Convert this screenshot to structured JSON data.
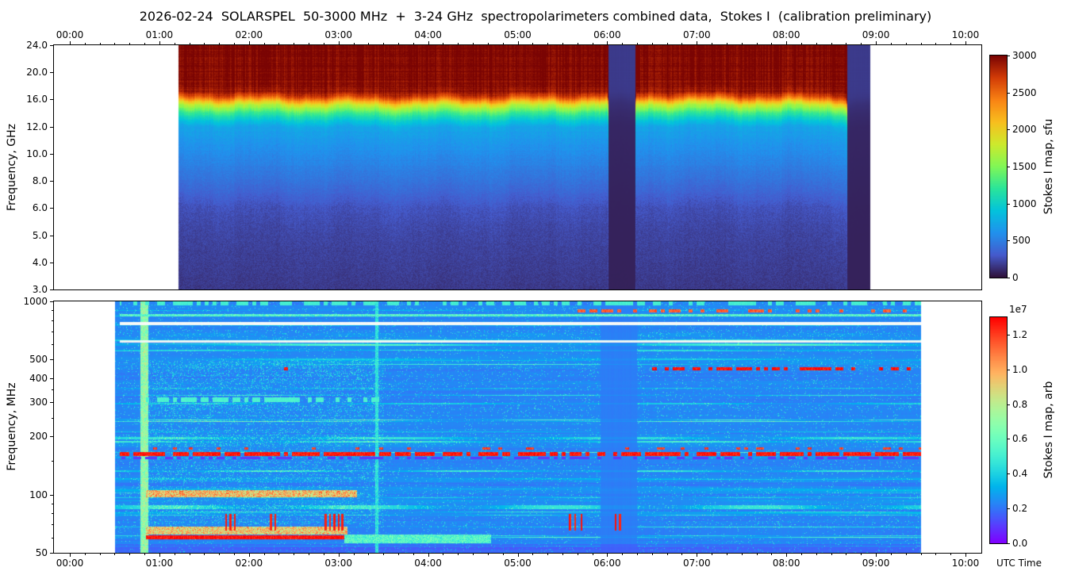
{
  "title": "2026-02-24  SOLARSPEL  50-3000 MHz  +  3-24 GHz  spectropolarimeters combined data,  Stokes I  (calibration preliminary)",
  "utc_label": "UTC Time",
  "palette": {
    "background": "#ffffff",
    "axes": "#000000",
    "quiet_sun_blue": "#2f7bf2",
    "rfi_red": "#ff1200"
  },
  "chart_data": [
    {
      "type": "heatmap",
      "name": "microwave_spectrogram_3_24_ghz",
      "ylabel": "Frequency, GHz",
      "x_ticks": [
        "00:00",
        "01:00",
        "02:00",
        "03:00",
        "04:00",
        "05:00",
        "06:00",
        "07:00",
        "08:00",
        "09:00",
        "10:00"
      ],
      "x_tick_hours": [
        0,
        1,
        2,
        3,
        4,
        5,
        6,
        7,
        8,
        9,
        10
      ],
      "y_ticks": [
        "24.0",
        "20.0",
        "16.0",
        "12.0",
        "10.0",
        "8.0",
        "6.0",
        "5.0",
        "4.0",
        "3.0"
      ],
      "y_tick_values": [
        24,
        20,
        16,
        12,
        10,
        8,
        6,
        5,
        4,
        3
      ],
      "y_unit": "GHz",
      "colorbar": {
        "label": "Stokes I map, sfu",
        "ticks": [
          "3000",
          "2500",
          "2000",
          "1500",
          "1000",
          "500",
          "0"
        ],
        "tick_values": [
          3000,
          2500,
          2000,
          1500,
          1000,
          500,
          0
        ],
        "vmin": 0,
        "vmax": 3000,
        "colormap": "turbo"
      },
      "data_extent_hours": [
        1.21,
        8.93
      ],
      "gaps_hours": [
        [
          6.01,
          6.31
        ],
        [
          8.68,
          8.93
        ]
      ],
      "boundary_wiggle_ghz": 0.3,
      "profile_ghz_sfu": [
        [
          3,
          160
        ],
        [
          5,
          210
        ],
        [
          6,
          260
        ],
        [
          8,
          430
        ],
        [
          10,
          570
        ],
        [
          12,
          720
        ],
        [
          13,
          960
        ],
        [
          14,
          1260
        ],
        [
          15,
          1660
        ],
        [
          15.5,
          1960
        ],
        [
          16,
          2360
        ],
        [
          16.5,
          2660
        ],
        [
          17,
          2860
        ],
        [
          18,
          2960
        ],
        [
          24,
          3000
        ]
      ]
    },
    {
      "type": "heatmap",
      "name": "metric_spectrogram_50_1000_mhz",
      "ylabel": "Frequency, MHz",
      "x_ticks": [
        "00:00",
        "01:00",
        "02:00",
        "03:00",
        "04:00",
        "05:00",
        "06:00",
        "07:00",
        "08:00",
        "09:00",
        "10:00"
      ],
      "x_tick_hours": [
        0,
        1,
        2,
        3,
        4,
        5,
        6,
        7,
        8,
        9,
        10
      ],
      "y_ticks": [
        "1000",
        "500",
        "400",
        "300",
        "200",
        "100",
        "50"
      ],
      "y_tick_values": [
        1000,
        500,
        400,
        300,
        200,
        100,
        50
      ],
      "y_scale": "log",
      "y_unit": "MHz",
      "colorbar": {
        "label": "Stokes I map, arb",
        "scale_label": "1e7",
        "ticks": [
          "1.2",
          "1.0",
          "0.8",
          "0.6",
          "0.4",
          "0.2",
          "0.0"
        ],
        "tick_values": [
          1.2,
          1.0,
          0.8,
          0.6,
          0.4,
          0.2,
          0.0
        ],
        "vmin": 0,
        "vmax": 1.3,
        "colormap": "rainbow"
      },
      "data_extent_hours": [
        0.5,
        9.5
      ],
      "base_level_1e7": 0.23,
      "features": [
        {
          "name": "burst-onset-vertical-lane",
          "kind": "vband",
          "t_hours": [
            0.78,
            0.87
          ],
          "f_mhz": [
            50,
            1000
          ],
          "value_1e7": 0.55,
          "noise_1e7": 0.3
        },
        {
          "name": "faint-vertical-lane-0325",
          "kind": "vband",
          "t_hours": [
            3.41,
            3.44
          ],
          "f_mhz": [
            50,
            1000
          ],
          "value_1e7": 0.38,
          "noise_1e7": 0.15
        },
        {
          "name": "quiet-vertical-band-0600",
          "kind": "vsmooth",
          "t_hours": [
            5.92,
            6.33
          ]
        },
        {
          "name": "burst-60mhz-halo",
          "kind": "hband",
          "t_hours": [
            0.85,
            3.1
          ],
          "f_mhz": [
            62,
            68
          ],
          "value_1e7": 0.92,
          "soft": true
        },
        {
          "name": "burst-60mhz-core",
          "kind": "hband",
          "t_hours": [
            0.85,
            3.06
          ],
          "f_mhz": [
            58.5,
            61.5
          ],
          "value_1e7": 1.27
        },
        {
          "name": "burst-60mhz-tail",
          "kind": "hband",
          "t_hours": [
            3.06,
            4.7
          ],
          "f_mhz": [
            56,
            62
          ],
          "value_1e7": 0.55,
          "soft": true
        },
        {
          "name": "band-100mhz",
          "kind": "hband",
          "t_hours": [
            0.85,
            3.2
          ],
          "f_mhz": [
            97,
            105
          ],
          "value_1e7": 0.95,
          "soft": true
        },
        {
          "name": "band-300mhz",
          "kind": "dotline",
          "t_hours": [
            0.85,
            3.45
          ],
          "f_mhz": [
            300,
            320
          ],
          "value_1e7": 0.52,
          "duty": 0.65
        },
        {
          "name": "rfi-155mhz-shadow",
          "kind": "dotline",
          "t_hours": [
            0.55,
            9.5
          ],
          "f_mhz": [
            152,
            157
          ],
          "value_1e7": 0.1,
          "duty": 0.5
        },
        {
          "name": "rfi-160mhz",
          "kind": "dotline",
          "t_hours": [
            0.55,
            9.5
          ],
          "f_mhz": [
            158,
            166
          ],
          "value_1e7": 1.26,
          "duty": 0.75
        },
        {
          "name": "rfi-172mhz",
          "kind": "dotline",
          "t_hours": [
            0.55,
            9.5
          ],
          "f_mhz": [
            170,
            176
          ],
          "value_1e7": 1.2,
          "duty": 0.18
        },
        {
          "name": "rfi-450mhz-early",
          "kind": "dotline",
          "t_hours": [
            2.25,
            2.58
          ],
          "f_mhz": [
            442,
            459
          ],
          "value_1e7": 1.28,
          "duty": 0.6
        },
        {
          "name": "rfi-450mhz",
          "kind": "dotline",
          "t_hours": [
            6.5,
            9.42
          ],
          "f_mhz": [
            442,
            459
          ],
          "value_1e7": 1.28,
          "duty": 0.45
        },
        {
          "name": "rfi-900mhz",
          "kind": "dotline",
          "t_hours": [
            5.55,
            9.45
          ],
          "f_mhz": [
            880,
            915
          ],
          "value_1e7": 1.15,
          "duty": 0.3
        },
        {
          "name": "band-990mhz-top-edge",
          "kind": "dotline",
          "t_hours": [
            0.55,
            9.5
          ],
          "f_mhz": [
            955,
            1000
          ],
          "value_1e7": 0.5,
          "duty": 0.5
        },
        {
          "name": "line-770mhz-white",
          "kind": "hband",
          "t_hours": [
            0.55,
            9.5
          ],
          "f_mhz": [
            757,
            782
          ],
          "rgb": [
            247,
            250,
            247
          ]
        },
        {
          "name": "line-620mhz-white",
          "kind": "hband",
          "t_hours": [
            0.55,
            9.5
          ],
          "f_mhz": [
            612,
            632
          ],
          "rgb": [
            240,
            247,
            242
          ]
        },
        {
          "name": "line-850mhz-green",
          "kind": "hband",
          "t_hours": [
            0.55,
            9.5
          ],
          "f_mhz": [
            838,
            862
          ],
          "value_1e7": 0.55,
          "soft": true
        },
        {
          "name": "rfi-70mhz-bursts",
          "kind": "vticks",
          "f_mhz": [
            65,
            79
          ],
          "times_hours": [
            1.74,
            1.79,
            1.84,
            2.24,
            2.29,
            2.85,
            2.9,
            2.95,
            3.0,
            3.04,
            5.58,
            5.64,
            5.71,
            6.09,
            6.14
          ],
          "width_hours": 0.022,
          "value_1e7": 1.25
        }
      ]
    }
  ]
}
